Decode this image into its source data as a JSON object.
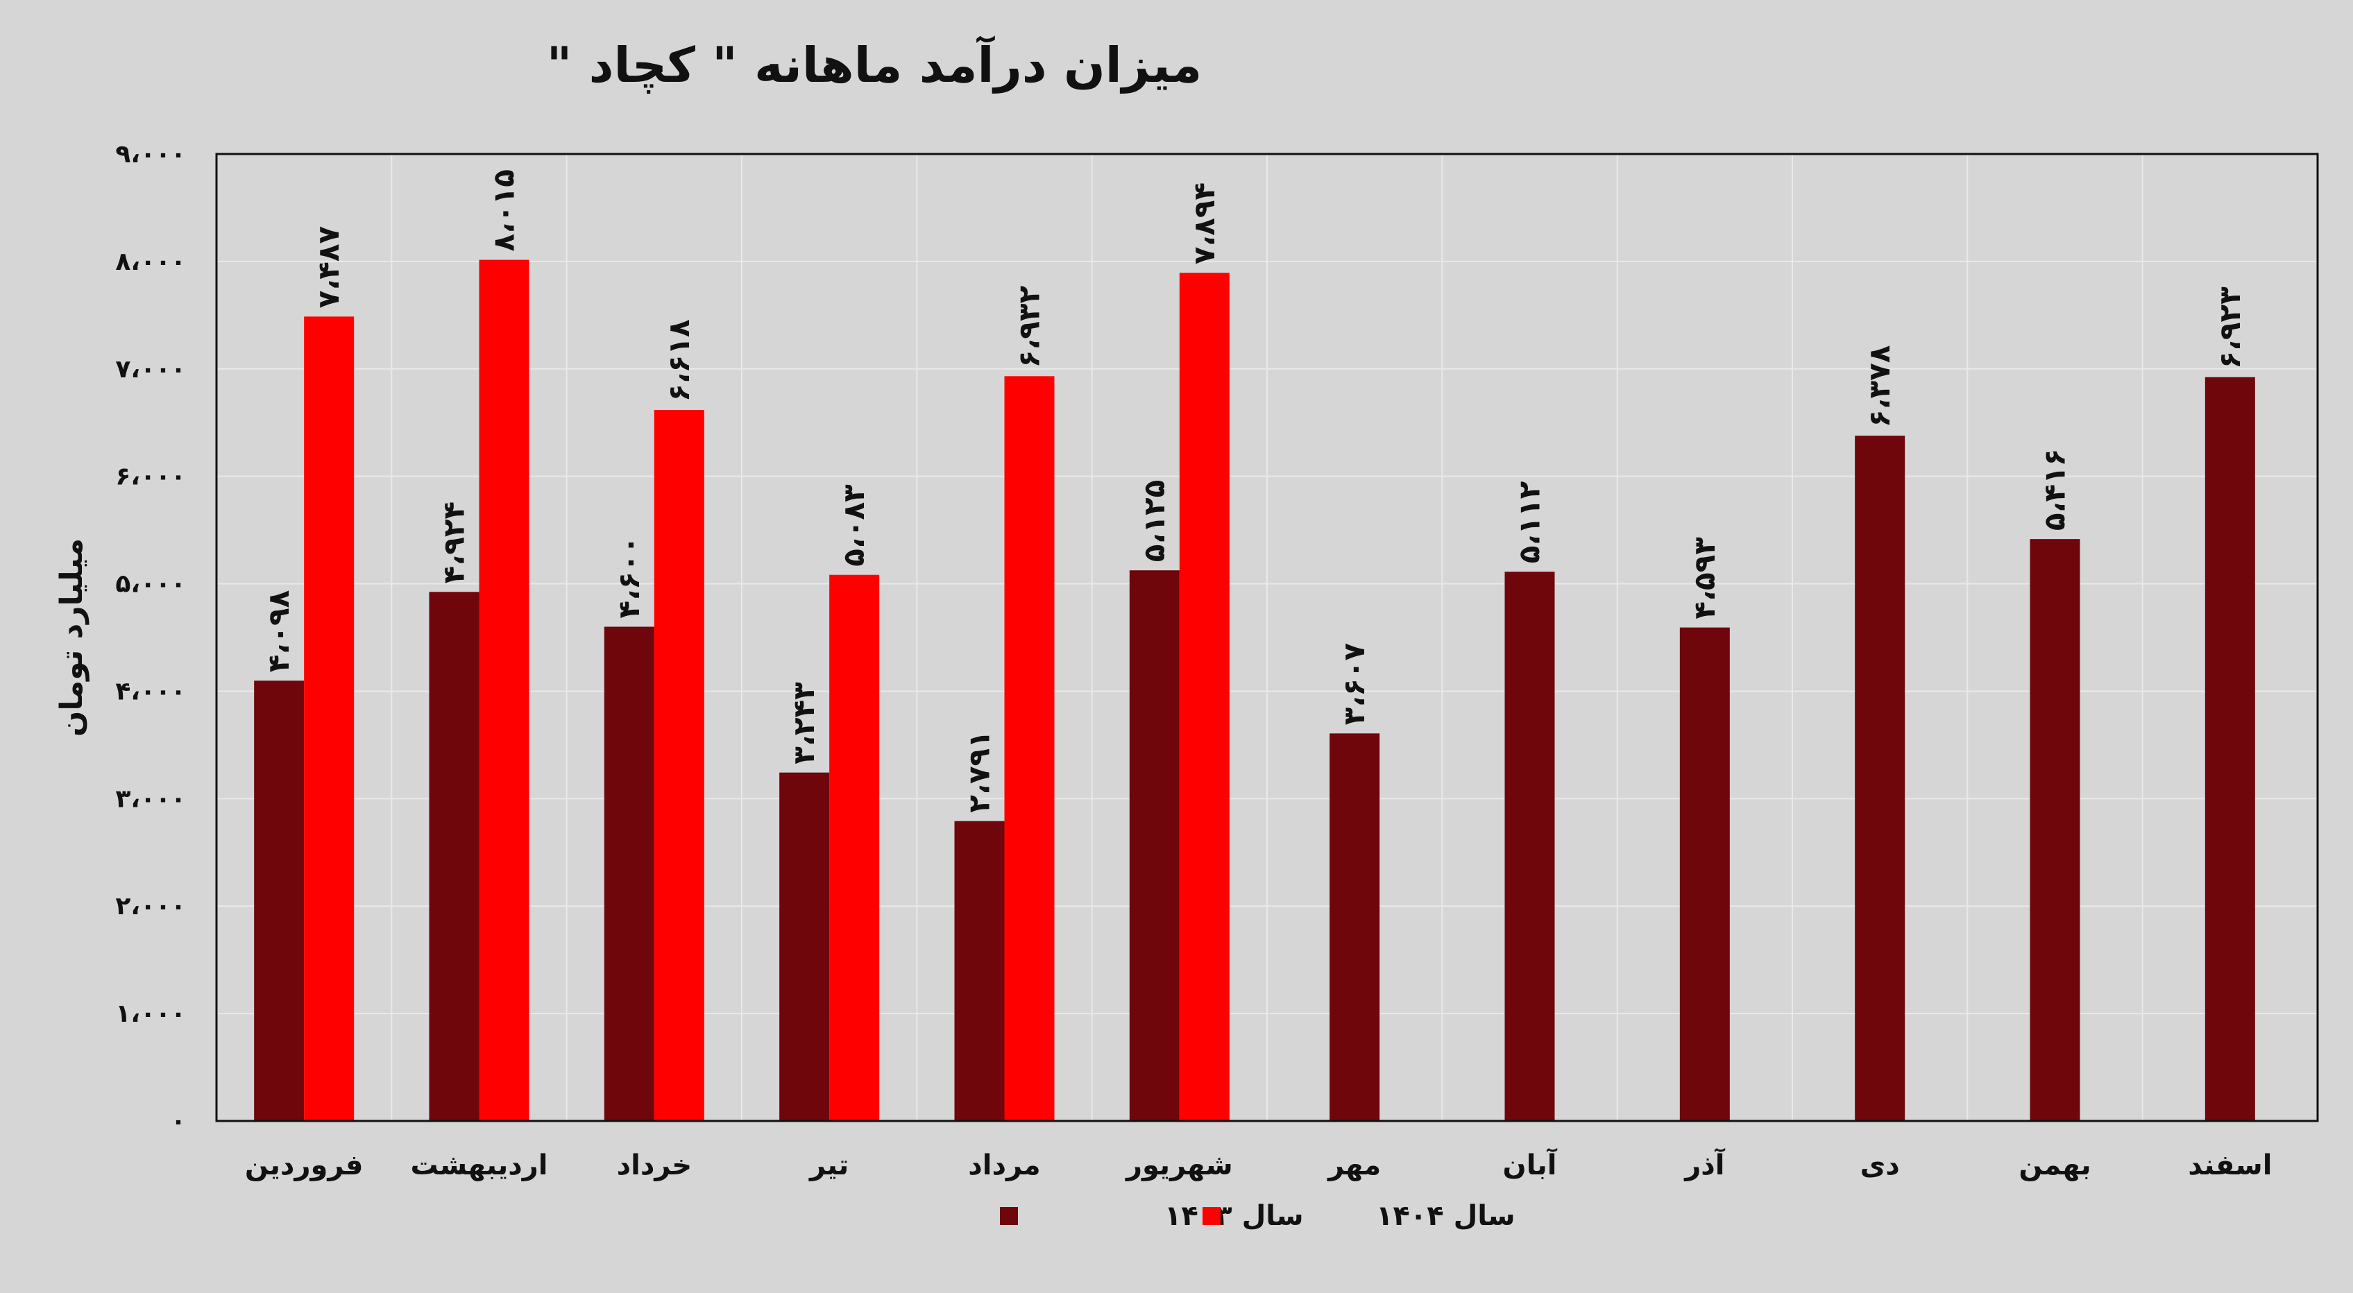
{
  "chart_data": {
    "type": "bar",
    "title": "میزان درآمد ماهانه \" کچاد \"",
    "ylabel": "میلیارد تومان",
    "xlabel": "",
    "ylim": [
      0,
      9000
    ],
    "yticks": [
      0,
      1000,
      2000,
      3000,
      4000,
      5000,
      6000,
      7000,
      8000,
      9000
    ],
    "ytick_labels": [
      "۰",
      "۱،۰۰۰",
      "۲،۰۰۰",
      "۳،۰۰۰",
      "۴،۰۰۰",
      "۵،۰۰۰",
      "۶،۰۰۰",
      "۷،۰۰۰",
      "۸،۰۰۰",
      "۹،۰۰۰"
    ],
    "categories": [
      "فروردین",
      "اردیبهشت",
      "خرداد",
      "تیر",
      "مرداد",
      "شهریور",
      "مهر",
      "آبان",
      "آذر",
      "دی",
      "بهمن",
      "اسفند"
    ],
    "grid": true,
    "legend_position": "bottom",
    "series": [
      {
        "name": "سال ۱۴۰۳",
        "color": "#6e060b",
        "values": [
          4098,
          4924,
          4600,
          3243,
          2791,
          5125,
          3607,
          5112,
          4593,
          6378,
          5416,
          6923
        ],
        "labels": [
          "۴،۰۹۸",
          "۴،۹۲۴",
          "۴،۶۰۰",
          "۳،۲۴۳",
          "۲،۷۹۱",
          "۵،۱۲۵",
          "۳،۶۰۷",
          "۵،۱۱۲",
          "۴،۵۹۳",
          "۶،۳۷۸",
          "۵،۴۱۶",
          "۶،۹۲۳"
        ]
      },
      {
        "name": "سال ۱۴۰۴",
        "color": "#ff0000",
        "values": [
          7487,
          8015,
          6618,
          5083,
          6932,
          7894,
          null,
          null,
          null,
          null,
          null,
          null
        ],
        "labels": [
          "۷،۴۸۷",
          "۸،۰۱۵",
          "۶،۶۱۸",
          "۵،۰۸۳",
          "۶،۹۳۲",
          "۷،۸۹۴",
          null,
          null,
          null,
          null,
          null,
          null
        ]
      }
    ]
  }
}
